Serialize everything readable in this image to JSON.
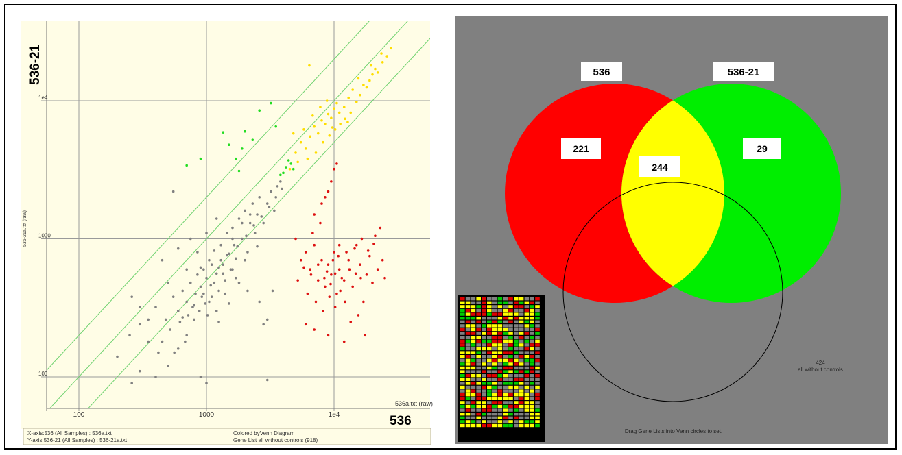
{
  "chart_data": [
    {
      "type": "scatter",
      "scale": "log-log",
      "xlim": [
        55,
        30000
      ],
      "ylim": [
        75,
        40000
      ],
      "x_ticks": [
        {
          "value": 100,
          "label": "100"
        },
        {
          "value": 1000,
          "label": "1000"
        },
        {
          "value": 10000,
          "label": "1e4"
        }
      ],
      "y_ticks": [
        {
          "value": 100,
          "label": "100"
        },
        {
          "value": 1000,
          "label": "1000"
        },
        {
          "value": 10000,
          "label": "1e4"
        }
      ],
      "grid": true,
      "xlabel": "536a.txt (raw)",
      "ylabel": "536-21a.txt (raw)",
      "x_big_label": "536",
      "y_big_label": "536-21",
      "diagonal_lines": [
        0.5,
        1,
        2
      ],
      "footer": {
        "x_axis": "X-axis:536 (All Samples) : 536a.txt",
        "y_axis": "Y-axis:536-21 (All Samples) : 536-21a.txt",
        "colored_by": "Colored byVenn Diagram",
        "gene_list": "Gene List all without controls (918)"
      },
      "series": [
        {
          "color": "#808080",
          "points": [
            [
              200,
              140
            ],
            [
              250,
              200
            ],
            [
              300,
              240
            ],
            [
              350,
              180
            ],
            [
              400,
              320
            ],
            [
              420,
              150
            ],
            [
              480,
              260
            ],
            [
              520,
              220
            ],
            [
              550,
              380
            ],
            [
              600,
              300
            ],
            [
              620,
              250
            ],
            [
              650,
              420
            ],
            [
              680,
              180
            ],
            [
              700,
              350
            ],
            [
              720,
              280
            ],
            [
              750,
              480
            ],
            [
              780,
              320
            ],
            [
              800,
              260
            ],
            [
              820,
              400
            ],
            [
              850,
              550
            ],
            [
              880,
              300
            ],
            [
              900,
              450
            ],
            [
              920,
              380
            ],
            [
              950,
              600
            ],
            [
              980,
              340
            ],
            [
              1000,
              520
            ],
            [
              1020,
              280
            ],
            [
              1050,
              700
            ],
            [
              1080,
              460
            ],
            [
              1100,
              380
            ],
            [
              1150,
              820
            ],
            [
              1200,
              560
            ],
            [
              1250,
              420
            ],
            [
              1300,
              900
            ],
            [
              1350,
              650
            ],
            [
              1400,
              500
            ],
            [
              1450,
              1100
            ],
            [
              1500,
              780
            ],
            [
              1550,
              600
            ],
            [
              1600,
              1200
            ],
            [
              1650,
              900
            ],
            [
              1700,
              720
            ],
            [
              1800,
              1400
            ],
            [
              1900,
              1000
            ],
            [
              2000,
              1600
            ],
            [
              2100,
              800
            ],
            [
              2200,
              1300
            ],
            [
              2300,
              1800
            ],
            [
              2400,
              1100
            ],
            [
              2500,
              1500
            ],
            [
              2600,
              2000
            ],
            [
              2800,
              1300
            ],
            [
              3000,
              1800
            ],
            [
              3200,
              2200
            ],
            [
              3400,
              1600
            ],
            [
              3600,
              2400
            ],
            [
              3800,
              2600
            ],
            [
              300,
              110
            ],
            [
              260,
              90
            ],
            [
              400,
              100
            ],
            [
              500,
              120
            ],
            [
              560,
              150
            ],
            [
              900,
              100
            ],
            [
              1000,
              90
            ],
            [
              3000,
              95
            ],
            [
              3300,
              420
            ],
            [
              2800,
              240
            ],
            [
              600,
              160
            ],
            [
              700,
              200
            ],
            [
              1200,
              300
            ],
            [
              1400,
              400
            ],
            [
              1700,
              520
            ],
            [
              2000,
              700
            ],
            [
              2500,
              880
            ],
            [
              1100,
              650
            ],
            [
              900,
              620
            ],
            [
              850,
              800
            ],
            [
              1300,
              700
            ],
            [
              1600,
              1000
            ],
            [
              1900,
              1300
            ],
            [
              2200,
              1500
            ],
            [
              700,
              600
            ],
            [
              500,
              480
            ],
            [
              450,
              700
            ],
            [
              600,
              850
            ],
            [
              750,
              1000
            ],
            [
              1000,
              1100
            ],
            [
              1200,
              1400
            ],
            [
              550,
              2200
            ],
            [
              450,
              180
            ],
            [
              350,
              260
            ],
            [
              300,
              320
            ],
            [
              260,
              380
            ],
            [
              1250,
              250
            ],
            [
              1500,
              340
            ],
            [
              3000,
              260
            ],
            [
              2600,
              350
            ],
            [
              2100,
              420
            ],
            [
              1800,
              480
            ],
            [
              1600,
              600
            ],
            [
              1350,
              560
            ],
            [
              1150,
              480
            ],
            [
              950,
              400
            ],
            [
              800,
              330
            ],
            [
              650,
              270
            ],
            [
              1050,
              350
            ],
            [
              1250,
              620
            ],
            [
              1450,
              760
            ],
            [
              1750,
              880
            ],
            [
              2050,
              1050
            ],
            [
              2350,
              1250
            ],
            [
              2700,
              1450
            ],
            [
              3100,
              1700
            ],
            [
              3500,
              2000
            ],
            [
              3900,
              2300
            ]
          ]
        },
        {
          "color": "#dd1111",
          "points": [
            [
              6000,
              800
            ],
            [
              6500,
              600
            ],
            [
              7000,
              900
            ],
            [
              7500,
              500
            ],
            [
              8000,
              700
            ],
            [
              8500,
              450
            ],
            [
              9000,
              650
            ],
            [
              9500,
              550
            ],
            [
              10000,
              800
            ],
            [
              10500,
              400
            ],
            [
              11000,
              600
            ],
            [
              12000,
              500
            ],
            [
              13000,
              700
            ],
            [
              14000,
              450
            ],
            [
              15000,
              900
            ],
            [
              16000,
              650
            ],
            [
              17000,
              350
            ],
            [
              18000,
              550
            ],
            [
              19000,
              750
            ],
            [
              20000,
              480
            ],
            [
              22000,
              600
            ],
            [
              24000,
              700
            ],
            [
              25000,
              520
            ],
            [
              23000,
              1200
            ],
            [
              21000,
              1050
            ],
            [
              7000,
              1500
            ],
            [
              8000,
              1800
            ],
            [
              9000,
              2200
            ],
            [
              9500,
              2600
            ],
            [
              10000,
              3200
            ],
            [
              10500,
              3500
            ],
            [
              8500,
              2000
            ],
            [
              7800,
              1300
            ],
            [
              6800,
              1100
            ],
            [
              5500,
              700
            ],
            [
              5000,
              1000
            ],
            [
              5200,
              500
            ],
            [
              6200,
              400
            ],
            [
              7200,
              350
            ],
            [
              8200,
              300
            ],
            [
              9200,
              380
            ],
            [
              10200,
              320
            ],
            [
              11200,
              420
            ],
            [
              12200,
              350
            ],
            [
              13500,
              250
            ],
            [
              15500,
              280
            ],
            [
              17500,
              200
            ],
            [
              12000,
              180
            ],
            [
              9000,
              200
            ],
            [
              7000,
              220
            ],
            [
              6000,
              240
            ],
            [
              11000,
              900
            ],
            [
              12500,
              800
            ],
            [
              14500,
              850
            ],
            [
              16500,
              1000
            ],
            [
              18500,
              820
            ],
            [
              20500,
              920
            ],
            [
              7500,
              650
            ],
            [
              8800,
              580
            ],
            [
              9800,
              700
            ],
            [
              10800,
              750
            ],
            [
              11500,
              520
            ],
            [
              13200,
              600
            ],
            [
              14800,
              560
            ],
            [
              16200,
              520
            ],
            [
              6600,
              550
            ],
            [
              5800,
              620
            ],
            [
              9400,
              470
            ],
            [
              10200,
              560
            ],
            [
              8400,
              520
            ]
          ]
        },
        {
          "color": "#22dd22",
          "points": [
            [
              1350,
              5900
            ],
            [
              1500,
              4800
            ],
            [
              1700,
              3800
            ],
            [
              1900,
              4500
            ],
            [
              2000,
              6000
            ],
            [
              2300,
              5200
            ],
            [
              2600,
              8500
            ],
            [
              3200,
              9600
            ],
            [
              3500,
              6500
            ],
            [
              700,
              3400
            ],
            [
              900,
              3800
            ],
            [
              1800,
              3100
            ],
            [
              4000,
              3000
            ],
            [
              4200,
              3300
            ],
            [
              4400,
              3700
            ],
            [
              4600,
              3500
            ],
            [
              4800,
              3200
            ],
            [
              3800,
              2900
            ]
          ]
        },
        {
          "color": "#ffdd00",
          "points": [
            [
              4500,
              3200
            ],
            [
              5000,
              4200
            ],
            [
              5500,
              5000
            ],
            [
              6000,
              4500
            ],
            [
              6500,
              5500
            ],
            [
              7000,
              6500
            ],
            [
              7500,
              5800
            ],
            [
              8000,
              7200
            ],
            [
              8500,
              6800
            ],
            [
              9000,
              8000
            ],
            [
              9500,
              7500
            ],
            [
              10000,
              8800
            ],
            [
              10500,
              9600
            ],
            [
              11000,
              8200
            ],
            [
              12000,
              9000
            ],
            [
              13000,
              10500
            ],
            [
              14000,
              12000
            ],
            [
              15000,
              9800
            ],
            [
              16000,
              11000
            ],
            [
              17000,
              13000
            ],
            [
              18000,
              12500
            ],
            [
              19000,
              14000
            ],
            [
              20000,
              15500
            ],
            [
              21000,
              17000
            ],
            [
              22000,
              16000
            ],
            [
              24000,
              19000
            ],
            [
              26000,
              21000
            ],
            [
              28000,
              24000
            ],
            [
              6200,
              3800
            ],
            [
              7200,
              4200
            ],
            [
              8200,
              5000
            ],
            [
              9200,
              5600
            ],
            [
              10200,
              6200
            ],
            [
              11200,
              6800
            ],
            [
              12200,
              7400
            ],
            [
              13500,
              8200
            ],
            [
              5800,
              6200
            ],
            [
              6800,
              7800
            ],
            [
              7800,
              9000
            ],
            [
              8800,
              10000
            ],
            [
              4800,
              5800
            ],
            [
              6400,
              18000
            ],
            [
              5200,
              3600
            ],
            [
              9700,
              6400
            ],
            [
              12800,
              7000
            ],
            [
              15500,
              14500
            ],
            [
              19500,
              18000
            ],
            [
              23500,
              22000
            ]
          ]
        }
      ]
    },
    {
      "type": "venn",
      "sets": [
        {
          "label": "536",
          "color": "#ff0000"
        },
        {
          "label": "536-21",
          "color": "#00ee00"
        }
      ],
      "overlap_color": "#ffff00",
      "counts": {
        "only_a": "221",
        "both": "244",
        "only_b": "29"
      },
      "third_circle": {
        "count": "424",
        "label": "all without controls"
      },
      "instruction": "Drag Gene Lists into Venn circles to set."
    }
  ]
}
